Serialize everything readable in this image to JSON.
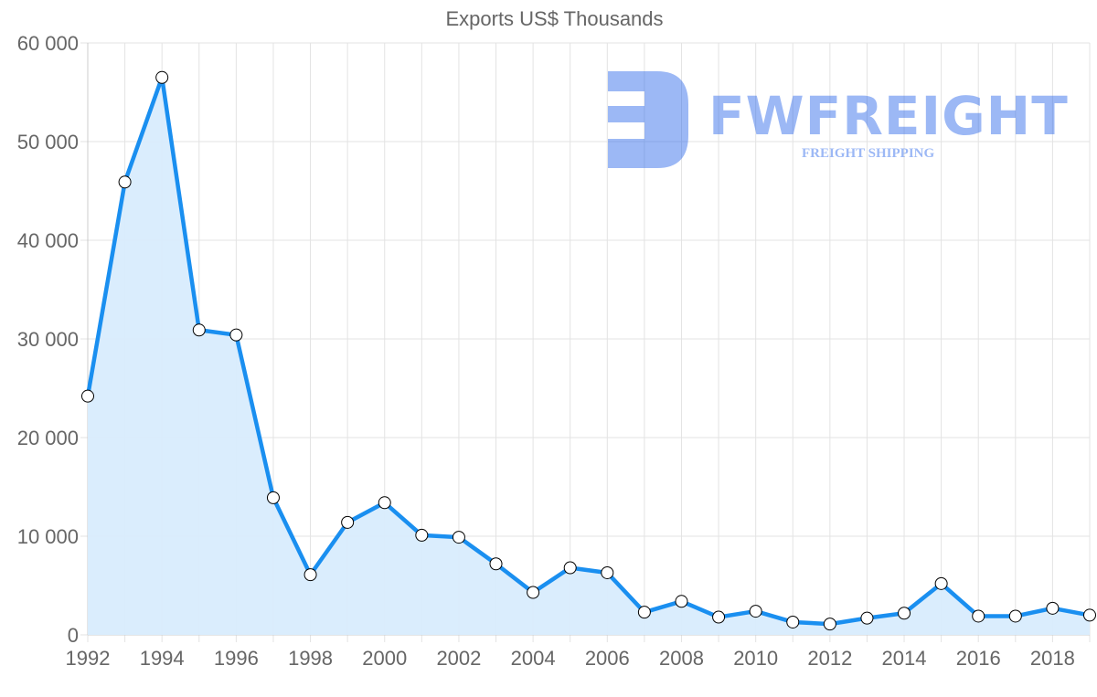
{
  "title": "Exports US$ Thousands",
  "watermark": {
    "brand": "FWFREIGHT",
    "tagline": "FREIGHT SHIPPING",
    "color": "#2563eb"
  },
  "colors": {
    "line": "#1a8ff0",
    "fill": "#d8ecfd",
    "grid": "#e3e3e3",
    "text": "#666666",
    "point_fill": "#ffffff",
    "point_stroke": "#000000"
  },
  "chart_data": {
    "type": "area",
    "title": "Exports US$ Thousands",
    "xlabel": "",
    "ylabel": "",
    "x": [
      1992,
      1993,
      1994,
      1995,
      1996,
      1997,
      1998,
      1999,
      2000,
      2001,
      2002,
      2003,
      2004,
      2005,
      2006,
      2007,
      2008,
      2009,
      2010,
      2011,
      2012,
      2013,
      2014,
      2015,
      2016,
      2017,
      2018,
      2019
    ],
    "series": [
      {
        "name": "Exports US$ Thousands",
        "values": [
          24200,
          45900,
          56500,
          30900,
          30400,
          13900,
          6100,
          11400,
          13400,
          10100,
          9900,
          7200,
          4300,
          6800,
          6300,
          2300,
          3400,
          1800,
          2400,
          1300,
          1100,
          1700,
          2200,
          5200,
          1900,
          1900,
          2700,
          2000
        ]
      }
    ],
    "x_tick_labels": [
      "1992",
      "1994",
      "1996",
      "1998",
      "2000",
      "2002",
      "2004",
      "2006",
      "2008",
      "2010",
      "2012",
      "2014",
      "2016",
      "2018"
    ],
    "y_tick_labels": [
      "0",
      "10 000",
      "20 000",
      "30 000",
      "40 000",
      "50 000",
      "60 000"
    ],
    "ylim": [
      0,
      60000
    ],
    "grid": true,
    "legend": "none"
  }
}
